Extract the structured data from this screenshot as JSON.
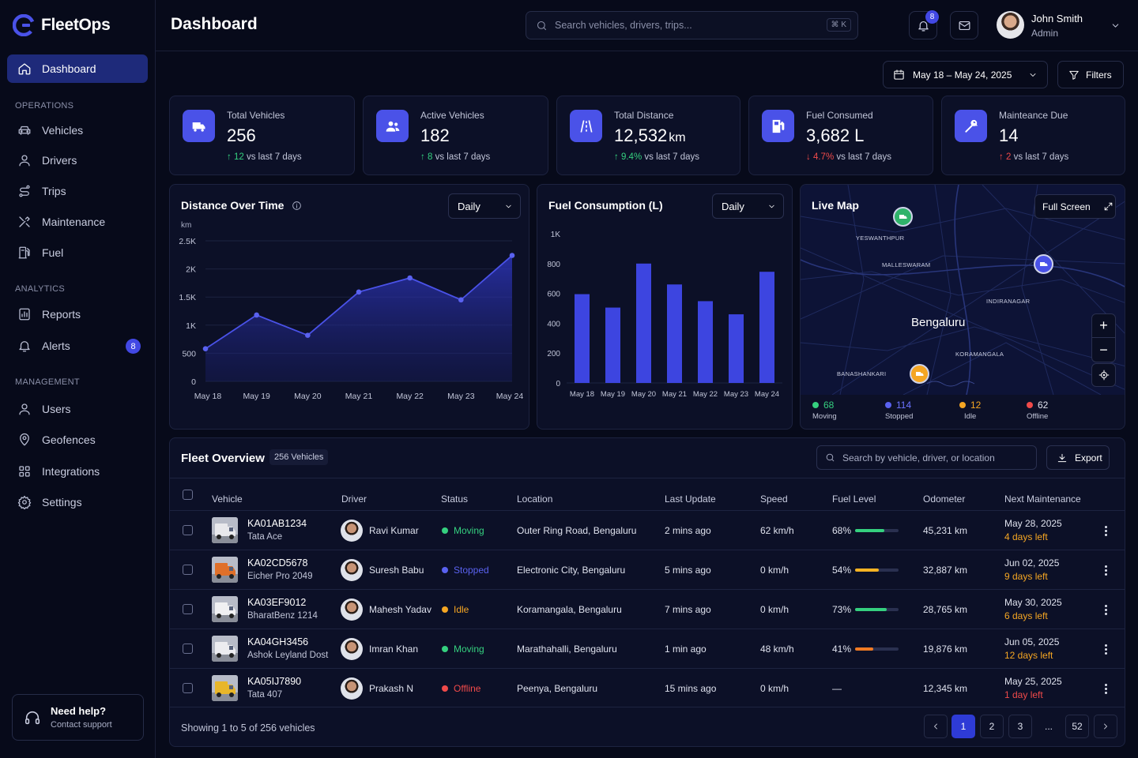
{
  "app": {
    "name": "FleetOps",
    "page_title": "Dashboard"
  },
  "sidebar": {
    "items": [
      {
        "label": "Dashboard"
      }
    ],
    "sections": [
      {
        "title": "OPERATIONS",
        "items": [
          {
            "label": "Vehicles"
          },
          {
            "label": "Drivers"
          },
          {
            "label": "Trips"
          },
          {
            "label": "Maintenance"
          },
          {
            "label": "Fuel"
          }
        ]
      },
      {
        "title": "ANALYTICS",
        "items": [
          {
            "label": "Reports"
          },
          {
            "label": "Alerts",
            "badge": "8"
          }
        ]
      },
      {
        "title": "MANAGEMENT",
        "items": [
          {
            "label": "Users"
          },
          {
            "label": "Geofences"
          },
          {
            "label": "Integrations"
          },
          {
            "label": "Settings"
          }
        ]
      }
    ],
    "help": {
      "title": "Need help?",
      "subtitle": "Contact support"
    }
  },
  "header": {
    "search_placeholder": "Search vehicles, drivers, trips...",
    "shortcut": "⌘ K",
    "notifications": "8",
    "user": {
      "name": "John Smith",
      "role": "Admin"
    }
  },
  "toolbar": {
    "date_range": "May 18 – May 24, 2025",
    "filters": "Filters"
  },
  "stats": [
    {
      "label": "Total Vehicles",
      "value": "256",
      "unit": "",
      "delta": "12",
      "delta_text": "vs last 7 days",
      "dir": "up",
      "icon": "truck-icon"
    },
    {
      "label": "Active Vehicles",
      "value": "182",
      "unit": "",
      "delta": "8",
      "delta_text": "vs last 7 days",
      "dir": "up",
      "icon": "users-icon"
    },
    {
      "label": "Total Distance",
      "value": "12,532",
      "unit": "km",
      "delta": "9.4%",
      "delta_text": "vs last 7 days",
      "dir": "up",
      "icon": "road-icon"
    },
    {
      "label": "Fuel Consumed",
      "value": "3,682 L",
      "unit": "",
      "delta": "4.7%",
      "delta_text": "vs last 7 days",
      "dir": "down",
      "icon": "fuel-icon"
    },
    {
      "label": "Mainteance Due",
      "value": "14",
      "unit": "",
      "delta": "2",
      "delta_text": "vs last 7 days",
      "dir": "up-bad",
      "icon": "wrench-icon"
    }
  ],
  "distance_chart": {
    "title": "Distance Over Time",
    "period": "Daily"
  },
  "fuel_chart": {
    "title": "Fuel Consumption (L)",
    "period": "Daily"
  },
  "chart_data": [
    {
      "type": "area",
      "title": "Distance Over Time",
      "ylabel": "km",
      "categories": [
        "May 18",
        "May 19",
        "May 20",
        "May 21",
        "May 22",
        "May 23",
        "May 24"
      ],
      "values": [
        580,
        1180,
        820,
        1590,
        1840,
        1450,
        2240
      ],
      "ylim": [
        0,
        2500
      ],
      "yticks": [
        "0",
        "500",
        "1K",
        "1.5K",
        "2K",
        "2.5K"
      ],
      "color": "#4a52e8"
    },
    {
      "type": "bar",
      "title": "Fuel Consumption (L)",
      "categories": [
        "May 18",
        "May 19",
        "May 20",
        "May 21",
        "May 22",
        "May 23",
        "May 24"
      ],
      "values": [
        595,
        505,
        800,
        660,
        548,
        460,
        745
      ],
      "ylim": [
        0,
        1000
      ],
      "yticks": [
        "0",
        "200",
        "400",
        "600",
        "800",
        "1K"
      ],
      "color": "#3d45e0"
    }
  ],
  "map": {
    "title": "Live Map",
    "fullscreen": "Full Screen",
    "city": "Bengaluru",
    "areas": [
      "YESWANTHPUR",
      "MALLESWARAM",
      "INDIRANAGAR",
      "KORAMANGALA",
      "BANASHANKARI"
    ],
    "legend": [
      {
        "value": "68",
        "label": "Moving",
        "color": "#35d07f"
      },
      {
        "value": "114",
        "label": "Stopped",
        "color": "#5a62f0"
      },
      {
        "value": "12",
        "label": "Idle",
        "color": "#f5a623"
      },
      {
        "value": "62",
        "label": "Offline",
        "color": "#ef4a4a"
      }
    ]
  },
  "fleet": {
    "title": "Fleet Overview",
    "count": "256 Vehicles",
    "search_placeholder": "Search by vehicle, driver, or location",
    "export": "Export",
    "columns": [
      "Vehicle",
      "Driver",
      "Status",
      "Location",
      "Last Update",
      "Speed",
      "Fuel Level",
      "Odometer",
      "Next Maintenance"
    ],
    "rows": [
      {
        "plate": "KA01AB1234",
        "model": "Tata Ace",
        "driver": "Ravi Kumar",
        "status": "Moving",
        "status_color": "#35d07f",
        "location": "Outer Ring Road, Bengaluru",
        "updated": "2 mins ago",
        "speed": "62 km/h",
        "fuel": "68%",
        "fuel_frac": 0.68,
        "fuel_color": "#35d07f",
        "odometer": "45,231 km",
        "maint_date": "May 28, 2025",
        "maint_left": "4 days left",
        "left_color": "#f5a623",
        "truck": "#e8e8ec"
      },
      {
        "plate": "KA02CD5678",
        "model": "Eicher Pro 2049",
        "driver": "Suresh Babu",
        "status": "Stopped",
        "status_color": "#5a62f0",
        "location": "Electronic City, Bengaluru",
        "updated": "5 mins ago",
        "speed": "0 km/h",
        "fuel": "54%",
        "fuel_frac": 0.54,
        "fuel_color": "#f5b323",
        "odometer": "32,887 km",
        "maint_date": "Jun 02, 2025",
        "maint_left": "9 days left",
        "left_color": "#f5a623",
        "truck": "#e0702a"
      },
      {
        "plate": "KA03EF9012",
        "model": "BharatBenz 1214",
        "driver": "Mahesh Yadav",
        "status": "Idle",
        "status_color": "#f5a623",
        "location": "Koramangala, Bengaluru",
        "updated": "7 mins ago",
        "speed": "0 km/h",
        "fuel": "73%",
        "fuel_frac": 0.73,
        "fuel_color": "#35d07f",
        "odometer": "28,765 km",
        "maint_date": "May 30, 2025",
        "maint_left": "6 days left",
        "left_color": "#f5a623",
        "truck": "#f0f0f2"
      },
      {
        "plate": "KA04GH3456",
        "model": "Ashok Leyland Dost",
        "driver": "Imran Khan",
        "status": "Moving",
        "status_color": "#35d07f",
        "location": "Marathahalli, Bengaluru",
        "updated": "1 min ago",
        "speed": "48 km/h",
        "fuel": "41%",
        "fuel_frac": 0.41,
        "fuel_color": "#f07a23",
        "odometer": "19,876 km",
        "maint_date": "Jun 05, 2025",
        "maint_left": "12 days left",
        "left_color": "#f5a623",
        "truck": "#ececf0"
      },
      {
        "plate": "KA05IJ7890",
        "model": "Tata 407",
        "driver": "Prakash N",
        "status": "Offline",
        "status_color": "#ef4a4a",
        "location": "Peenya, Bengaluru",
        "updated": "15 mins ago",
        "speed": "0 km/h",
        "fuel": "—",
        "fuel_frac": 0,
        "fuel_color": "#2a3050",
        "odometer": "12,345 km",
        "maint_date": "May 25, 2025",
        "maint_left": "1 day left",
        "left_color": "#ef4a4a",
        "truck": "#e8b62a"
      }
    ],
    "footer": "Showing 1 to 5 of 256 vehicles",
    "pages": [
      "1",
      "2",
      "3",
      "...",
      "52"
    ]
  }
}
